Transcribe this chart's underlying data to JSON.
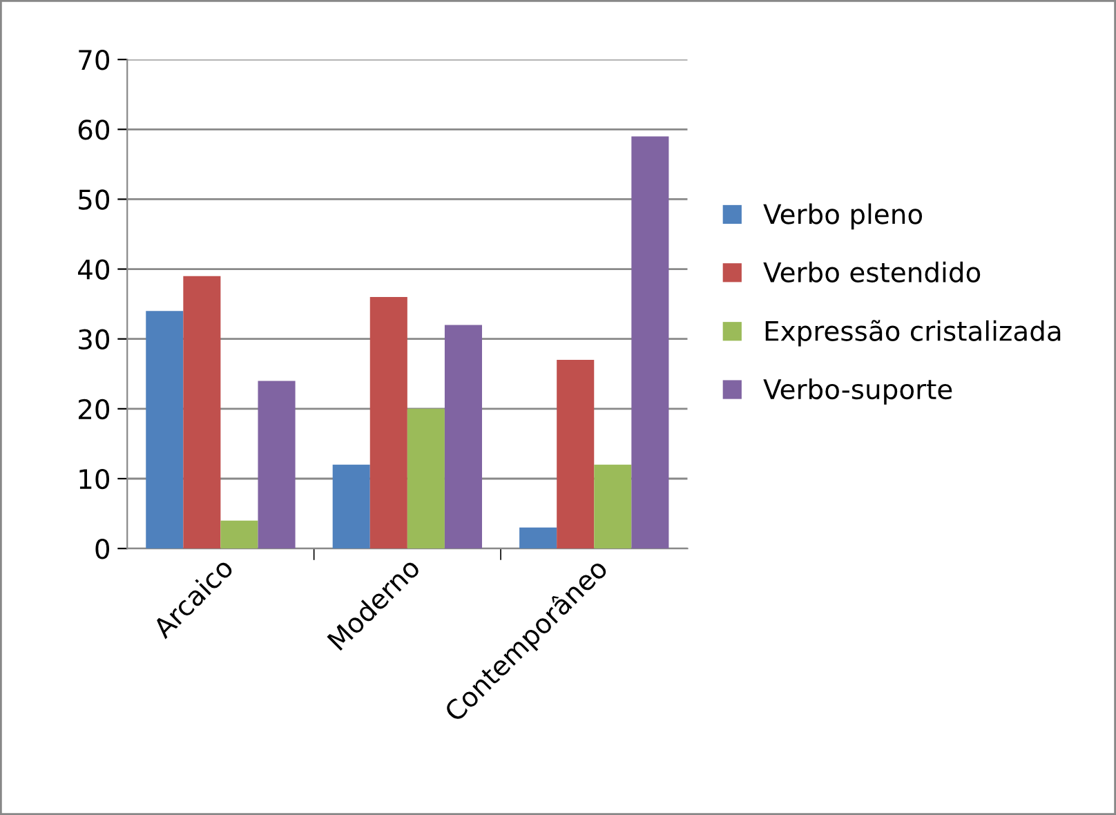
{
  "chart_data": {
    "type": "bar",
    "categories": [
      "Arcaico",
      "Moderno",
      "Contemporâneo"
    ],
    "series": [
      {
        "name": "Verbo pleno",
        "color": "#4f81bd",
        "values": [
          34,
          12,
          3
        ]
      },
      {
        "name": "Verbo estendido",
        "color": "#c0504d",
        "values": [
          39,
          36,
          27
        ]
      },
      {
        "name": "Expressão cristalizada",
        "color": "#9bbb59",
        "values": [
          4,
          20,
          12
        ]
      },
      {
        "name": "Verbo-suporte",
        "color": "#8064a2",
        "values": [
          24,
          32,
          59
        ]
      }
    ],
    "ylim": [
      0,
      70
    ],
    "yticks": [
      0,
      10,
      20,
      30,
      40,
      50,
      60,
      70
    ],
    "grid": "y",
    "legend": "right"
  }
}
